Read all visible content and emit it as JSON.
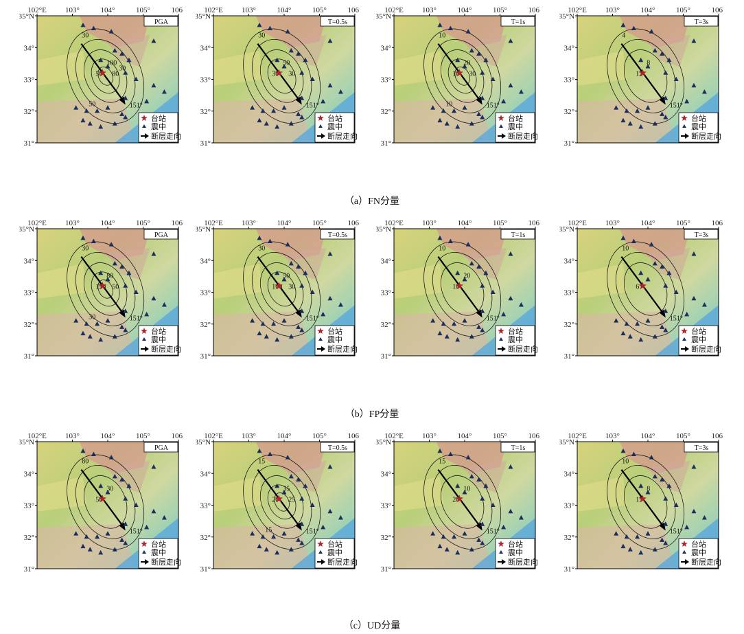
{
  "figure": {
    "x_ticks": [
      "102°E",
      "103°",
      "104°",
      "105°",
      "106°"
    ],
    "y_ticks": [
      "35°N",
      "34°",
      "33°",
      "32°",
      "31°"
    ],
    "strike_label": "151°",
    "legend": {
      "station": "台站",
      "epicenter": "震中",
      "fault": "断层走向"
    },
    "colors": {
      "station": "#1c2e5c",
      "epicenter": "#a8262c",
      "contour": "#1a1a1a",
      "arrow": "#000000"
    }
  },
  "rows": [
    {
      "caption": "（a）FN分量",
      "panels": [
        {
          "tag": "PGA",
          "contour_levels": [
            "30",
            "50",
            "100",
            "80",
            "50",
            "30"
          ]
        },
        {
          "tag": "T=0.5s",
          "contour_levels": [
            "30",
            "30",
            "50",
            "30"
          ]
        },
        {
          "tag": "T=1s",
          "contour_levels": [
            "10",
            "10",
            "20",
            "30",
            "10"
          ]
        },
        {
          "tag": "T=3s",
          "contour_levels": [
            "4",
            "12",
            "8"
          ]
        }
      ]
    },
    {
      "caption": "（b）FP分量",
      "panels": [
        {
          "tag": "PGA",
          "contour_levels": [
            "30",
            "150",
            "80",
            "50",
            "30"
          ]
        },
        {
          "tag": "T=0.5s",
          "contour_levels": [
            "30",
            "100",
            "50",
            "30"
          ]
        },
        {
          "tag": "T=1s",
          "contour_levels": [
            "10",
            "10",
            "20"
          ]
        },
        {
          "tag": "T=3s",
          "contour_levels": [
            "10",
            "6"
          ]
        }
      ]
    },
    {
      "caption": "（c）UD分量",
      "panels": [
        {
          "tag": "PGA",
          "contour_levels": [
            "80",
            "50",
            "30"
          ]
        },
        {
          "tag": "T=0.5s",
          "contour_levels": [
            "15",
            "20",
            "35",
            "25",
            "15"
          ]
        },
        {
          "tag": "T=1s",
          "contour_levels": [
            "15",
            "20",
            "10"
          ]
        },
        {
          "tag": "T=3s",
          "contour_levels": [
            "10",
            "15",
            "8"
          ]
        }
      ]
    }
  ]
}
